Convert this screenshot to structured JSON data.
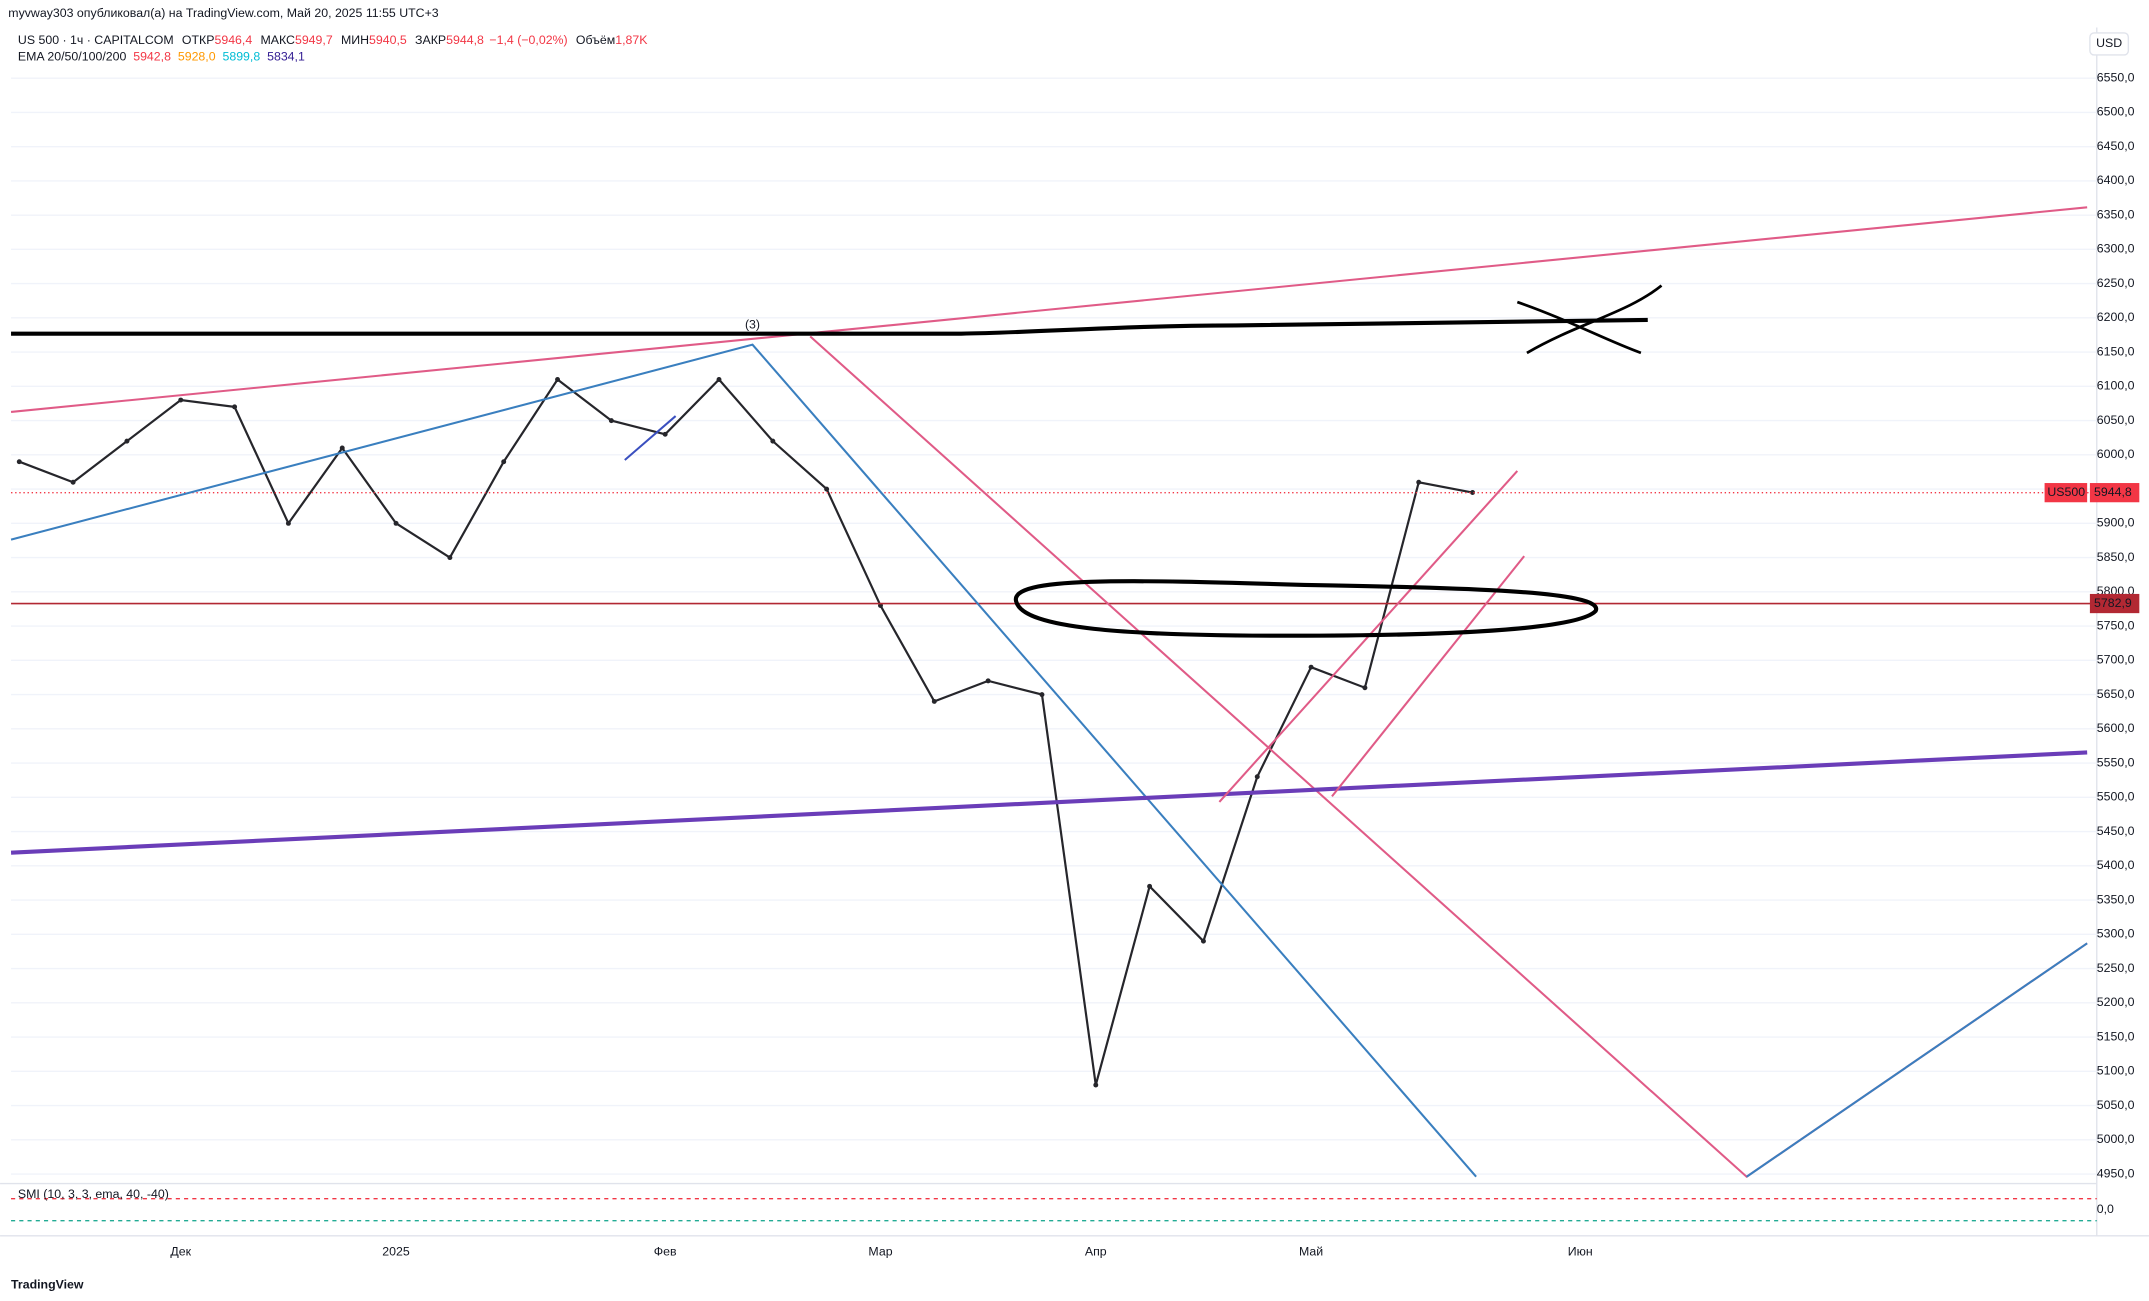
{
  "header": {
    "publisher": "myvway303 опубликовал(а) на TradingView.com, Май 20, 2025 11:55 UTC+3",
    "symbol": "US 500 · 1ч · CAPITALCOM",
    "open_label": "ОТКР",
    "open": "5946,4",
    "high_label": "МАКС",
    "high": "5949,7",
    "low_label": "МИН",
    "low": "5940,5",
    "close_label": "ЗАКР",
    "close": "5944,8",
    "change": "−1,4 (−0,02%)",
    "volume_label": "Объём",
    "volume": "1,87K",
    "ema_label": "EMA 20/50/100/200",
    "ema": [
      "5942,8",
      "5928,0",
      "5899,8",
      "5834,1"
    ]
  },
  "currency": "USD",
  "wave_label": "(3)",
  "indicator": {
    "label": "SMI (10, 3, 3, ema, 40, -40)",
    "zero": "0,0"
  },
  "footer": "TradingView",
  "chart_data": {
    "type": "line",
    "color": "#26262b",
    "categories": [
      null,
      null,
      null,
      "Дек",
      null,
      null,
      null,
      "2025",
      null,
      null,
      null,
      null,
      "Фев",
      null,
      null,
      null,
      "Мар",
      null,
      null,
      null,
      "Апр",
      null,
      null,
      null,
      "Май",
      null,
      null,
      null,
      null,
      "Июн",
      null,
      null,
      null,
      null,
      null,
      null,
      null,
      null
    ],
    "series": [
      {
        "name": "US500",
        "color": "#26262b",
        "values": [
          5990,
          5960,
          6020,
          6080,
          6070,
          5900,
          6010,
          5900,
          5850,
          5990,
          6110,
          6050,
          6030,
          6110,
          6020,
          5950,
          5780,
          5640,
          5670,
          5650,
          5080,
          5370,
          5290,
          5530,
          5690,
          5660,
          5960,
          5945,
          null,
          null,
          null,
          null,
          null,
          null,
          null,
          null,
          null,
          null
        ]
      }
    ],
    "price_label": {
      "name": "US500",
      "value": 5944.8,
      "label": "5944,8"
    },
    "level": {
      "value": 5782.9,
      "label": "5782,9",
      "color": "#b22833"
    },
    "ylim": [
      4940,
      6624
    ],
    "yticks": [
      {
        "value": 4950,
        "label": "4950,0"
      },
      {
        "value": 5000,
        "label": "5000,0"
      },
      {
        "value": 5050,
        "label": "5050,0"
      },
      {
        "value": 5100,
        "label": "5100,0"
      },
      {
        "value": 5150,
        "label": "5150,0"
      },
      {
        "value": 5200,
        "label": "5200,0"
      },
      {
        "value": 5250,
        "label": "5250,0"
      },
      {
        "value": 5300,
        "label": "5300,0"
      },
      {
        "value": 5350,
        "label": "5350,0"
      },
      {
        "value": 5400,
        "label": "5400,0"
      },
      {
        "value": 5450,
        "label": "5450,0"
      },
      {
        "value": 5500,
        "label": "5500,0"
      },
      {
        "value": 5550,
        "label": "5550,0"
      },
      {
        "value": 5600,
        "label": "5600,0"
      },
      {
        "value": 5650,
        "label": "5650,0"
      },
      {
        "value": 5700,
        "label": "5700,0"
      },
      {
        "value": 5750,
        "label": "5750,0"
      },
      {
        "value": 5800,
        "label": "5800,0"
      },
      {
        "value": 5850,
        "label": "5850,0"
      },
      {
        "value": 5900,
        "label": "5900,0"
      },
      {
        "value": 5950,
        "label": "5950,0"
      },
      {
        "value": 6000,
        "label": "6000,0"
      },
      {
        "value": 6050,
        "label": "6050,0"
      },
      {
        "value": 6100,
        "label": "6100,0"
      },
      {
        "value": 6150,
        "label": "6150,0"
      },
      {
        "value": 6200,
        "label": "6200,0"
      },
      {
        "value": 6250,
        "label": "6250,0"
      },
      {
        "value": 6300,
        "label": "6300,0"
      },
      {
        "value": 6350,
        "label": "6350,0"
      },
      {
        "value": 6400,
        "label": "6400,0"
      },
      {
        "value": 6450,
        "label": "6450,0"
      },
      {
        "value": 6500,
        "label": "6500,0"
      },
      {
        "value": 6550,
        "label": "6550,0"
      }
    ]
  }
}
